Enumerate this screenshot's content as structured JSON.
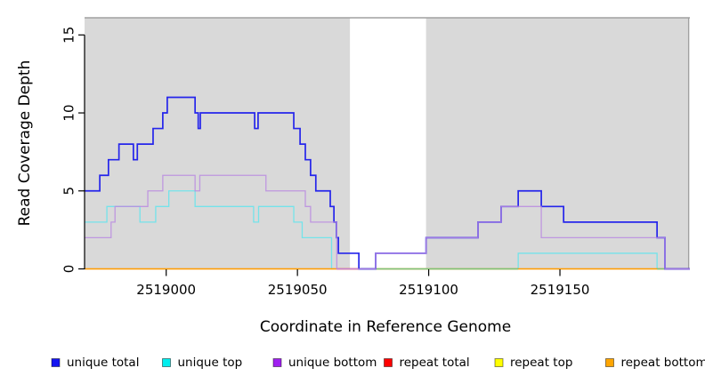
{
  "figure": {
    "background": "#ffffff"
  },
  "chart_data": {
    "type": "line",
    "subtype": "step-coverage",
    "title": "",
    "xlabel": "Coordinate in Reference Genome",
    "ylabel": "Read Coverage Depth",
    "xlim": [
      2518968.9,
      2519199.5
    ],
    "ylim": [
      0,
      16.1
    ],
    "x_ticks": [
      2519000,
      2519050,
      2519100,
      2519150
    ],
    "y_ticks": [
      0,
      5,
      10,
      15
    ],
    "grid": false,
    "legend_position": "bottom",
    "plot_bg": "#ffffff",
    "covered_region_color": "#D9D9D9",
    "covered_regions": [
      [
        2518968.9,
        2519070
      ],
      [
        2519099,
        2519198.8
      ]
    ],
    "uncovered_gap": [
      2519070,
      2519099
    ],
    "box_edge_color": "#A0A0A0",
    "series": [
      {
        "name": "unique total",
        "color": "#2525EB",
        "width": 1.7,
        "opacity": 1,
        "points": [
          [
            2518969,
            5
          ],
          [
            2518974.7,
            6
          ],
          [
            2518978,
            7
          ],
          [
            2518982,
            8
          ],
          [
            2518987.5,
            7
          ],
          [
            2518989,
            8
          ],
          [
            2518995,
            9
          ],
          [
            2518998.7,
            10
          ],
          [
            2519000.4,
            11
          ],
          [
            2519011,
            10
          ],
          [
            2519012.2,
            9
          ],
          [
            2519013,
            10
          ],
          [
            2519033.7,
            9
          ],
          [
            2519035,
            10
          ],
          [
            2519048.6,
            9
          ],
          [
            2519051,
            8
          ],
          [
            2519053,
            7
          ],
          [
            2519055,
            6
          ],
          [
            2519057,
            5
          ],
          [
            2519062.5,
            4
          ],
          [
            2519063.9,
            3
          ],
          [
            2519064.9,
            2
          ],
          [
            2519065.6,
            1
          ],
          [
            2519073.4,
            0
          ],
          [
            2519079.8,
            1
          ],
          [
            2519099,
            2
          ],
          [
            2519118.8,
            3
          ],
          [
            2519127.6,
            4
          ],
          [
            2519134.1,
            5
          ],
          [
            2519142.9,
            4
          ],
          [
            2519151.4,
            3
          ],
          [
            2519187,
            2
          ],
          [
            2519190,
            0
          ],
          [
            2519199.5,
            0
          ]
        ]
      },
      {
        "name": "unique top",
        "color": "#74E3EA",
        "width": 1.3,
        "opacity": 1,
        "points": [
          [
            2518969,
            3
          ],
          [
            2518977.4,
            4
          ],
          [
            2518990,
            3
          ],
          [
            2518996,
            4
          ],
          [
            2519001,
            5
          ],
          [
            2519011,
            4
          ],
          [
            2519033.3,
            3
          ],
          [
            2519035.2,
            4
          ],
          [
            2519048.6,
            3
          ],
          [
            2519051.8,
            2
          ],
          [
            2519063,
            0
          ],
          [
            2519134.1,
            1
          ],
          [
            2519187,
            0
          ],
          [
            2519199.5,
            0
          ]
        ]
      },
      {
        "name": "unique bottom",
        "color": "#BA8BE0",
        "width": 1.3,
        "opacity": 0.85,
        "points": [
          [
            2518969,
            2
          ],
          [
            2518979,
            3
          ],
          [
            2518980.5,
            4
          ],
          [
            2518993,
            5
          ],
          [
            2518998.7,
            6
          ],
          [
            2519011,
            5
          ],
          [
            2519012.8,
            6
          ],
          [
            2519038,
            5
          ],
          [
            2519053,
            4
          ],
          [
            2519055,
            3
          ],
          [
            2519065,
            0
          ],
          [
            2519079.8,
            1
          ],
          [
            2519099,
            2
          ],
          [
            2519118.8,
            3
          ],
          [
            2519127.6,
            4
          ],
          [
            2519142.9,
            2
          ],
          [
            2519190,
            0
          ],
          [
            2519199.5,
            0
          ]
        ]
      },
      {
        "name": "repeat total",
        "color": "#FF2A2A",
        "width": 1.3,
        "opacity": 1,
        "points": [
          [
            2518969,
            0
          ],
          [
            2519199.5,
            0
          ]
        ]
      },
      {
        "name": "repeat top",
        "color": "#FFE800",
        "width": 1.3,
        "opacity": 1,
        "points": [
          [
            2518969,
            0
          ],
          [
            2519199.5,
            0
          ]
        ]
      },
      {
        "name": "repeat bottom",
        "color": "#FF9D00",
        "width": 1.3,
        "opacity": 1,
        "points": [
          [
            2518969,
            0
          ],
          [
            2519199.5,
            0
          ]
        ]
      }
    ],
    "baseline_overlays": [
      {
        "from": 2519065,
        "to": 2519073.5,
        "color": "#E8508C"
      },
      {
        "from": 2519073.5,
        "to": 2519134.1,
        "color": "#79C47B"
      },
      {
        "from": 2519187,
        "to": 2519190,
        "color": "#79C47B"
      }
    ]
  },
  "legend": {
    "items": [
      {
        "label": "unique total",
        "color": "#1414F0"
      },
      {
        "label": "unique top",
        "color": "#00EEEE"
      },
      {
        "label": "unique bottom",
        "color": "#A020F0"
      },
      {
        "label": "repeat total",
        "color": "#FF0000"
      },
      {
        "label": "repeat top",
        "color": "#FFFF00"
      },
      {
        "label": "repeat bottom",
        "color": "#FFA500"
      }
    ]
  }
}
